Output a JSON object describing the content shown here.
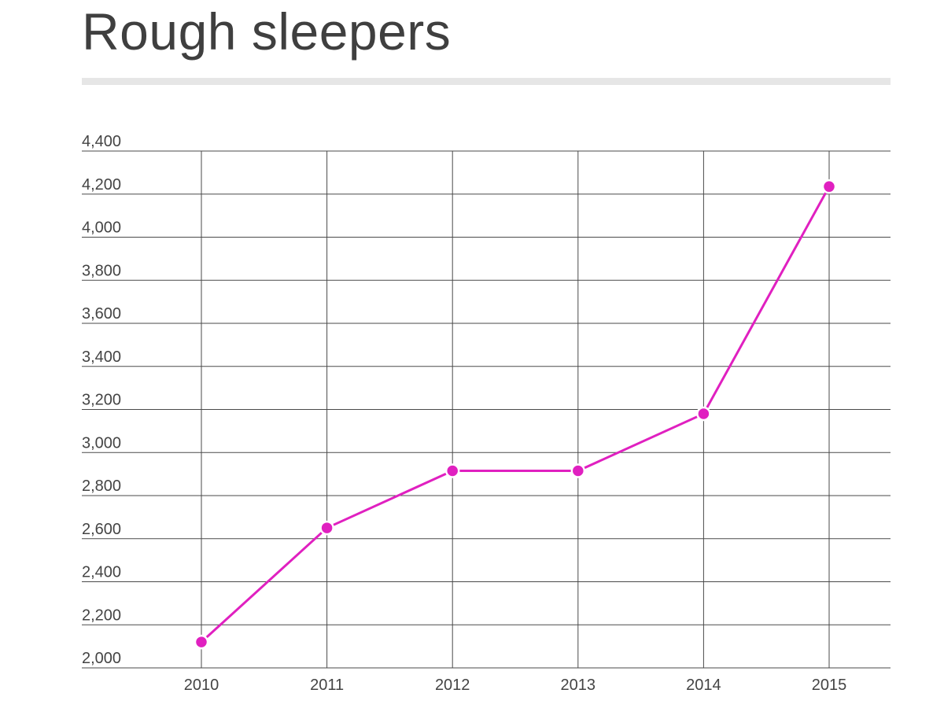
{
  "chart_data": {
    "type": "line",
    "title": "Rough sleepers",
    "xlabel": "",
    "ylabel": "",
    "categories": [
      "2010",
      "2011",
      "2012",
      "2013",
      "2014",
      "2015"
    ],
    "series": [
      {
        "values": [
          2120,
          2650,
          2915,
          2915,
          3180,
          4235
        ]
      }
    ],
    "ylim": [
      2000,
      4400
    ],
    "yticks": [
      2000,
      2200,
      2400,
      2600,
      2800,
      3000,
      3200,
      3400,
      3600,
      3800,
      4000,
      4200,
      4400
    ],
    "ytick_labels": [
      "2,000",
      "2,200",
      "2,400",
      "2,600",
      "2,800",
      "3,000",
      "3,200",
      "3,400",
      "3,600",
      "3,800",
      "4,000",
      "4,200",
      "4,400"
    ],
    "grid": true,
    "legend": "none",
    "colors": {
      "line": "#e020c0",
      "marker": "#e020c0",
      "grid": "#4a4a4a",
      "title": "#3f3f3f",
      "title_rule": "#e6e6e6"
    }
  }
}
